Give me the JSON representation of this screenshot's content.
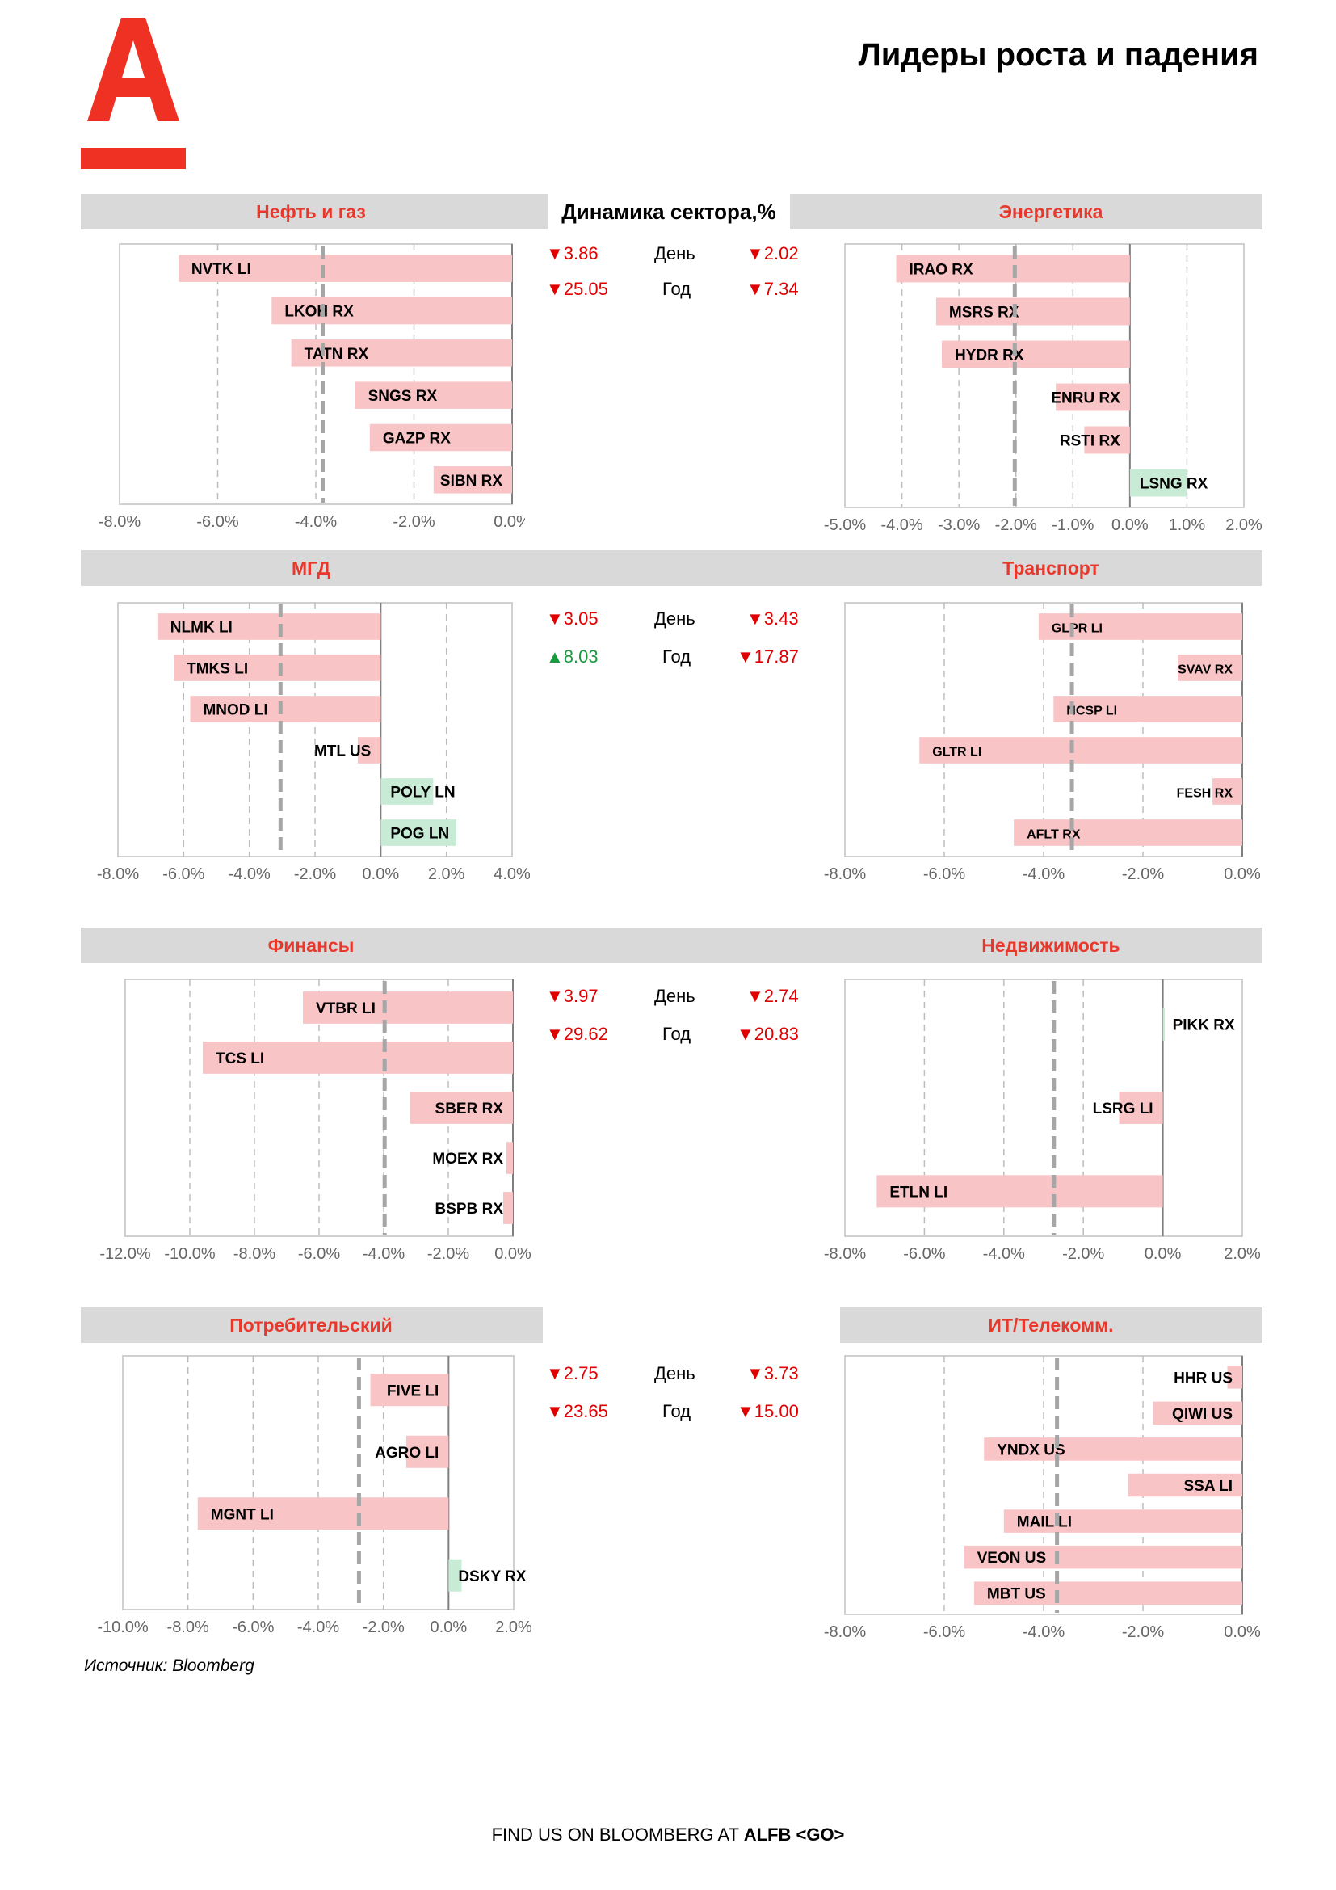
{
  "header": {
    "title": "Лидеры роста и падения",
    "brand_color": "#ef3124"
  },
  "mid_header": "Динамика сектора,%",
  "labels": {
    "day": "День",
    "year": "Год"
  },
  "source": "Источник: Bloomberg",
  "footer": {
    "prefix": "FIND US ON BLOOMBERG AT ",
    "bold": "ALFB <GO>"
  },
  "colors": {
    "negative_bar": "#f8c4c6",
    "positive_bar": "#c7ebd5",
    "title_red": "#e8382c",
    "band_gray": "#d9d9d9",
    "down_red": "#e00000",
    "up_green": "#1a9a40"
  },
  "sections": [
    {
      "title": "Нефть и газ",
      "stats": {
        "day_left": {
          "dir": "down",
          "text": "▼3.86"
        },
        "day_right": {
          "dir": "down",
          "text": "▼2.02"
        },
        "year_left": {
          "dir": "down",
          "text": "▼25.05"
        },
        "year_right": {
          "dir": "down",
          "text": "▼7.34"
        }
      }
    },
    {
      "title": "МГД",
      "stats": {
        "day_left": {
          "dir": "down",
          "text": "▼3.05"
        },
        "day_right": {
          "dir": "down",
          "text": "▼3.43"
        },
        "year_left": {
          "dir": "up",
          "text": "▲8.03"
        },
        "year_right": {
          "dir": "down",
          "text": "▼17.87"
        }
      }
    },
    {
      "title": "Финансы",
      "stats": {
        "day_left": {
          "dir": "down",
          "text": "▼3.97"
        },
        "day_right": {
          "dir": "down",
          "text": "▼2.74"
        },
        "year_left": {
          "dir": "down",
          "text": "▼29.62"
        },
        "year_right": {
          "dir": "down",
          "text": "▼20.83"
        }
      }
    },
    {
      "title": "Потребительский",
      "stats": {
        "day_left": {
          "dir": "down",
          "text": "▼2.75"
        },
        "day_right": {
          "dir": "down",
          "text": "▼3.73"
        },
        "year_left": {
          "dir": "down",
          "text": "▼23.65"
        },
        "year_right": {
          "dir": "down",
          "text": "▼15.00"
        }
      }
    }
  ],
  "right_titles": [
    "Энергетика",
    "Транспорт",
    "Недвижимость",
    "ИТ/Телекомм."
  ],
  "chart_data": [
    {
      "type": "bar",
      "title": "Нефть и газ",
      "orientation": "horizontal",
      "categories": [
        "NVTK LI",
        "LKOH RX",
        "TATN RX",
        "SNGS RX",
        "GAZP RX",
        "SIBN RX"
      ],
      "values": [
        -6.8,
        -4.9,
        -4.5,
        -3.2,
        -2.9,
        -1.6
      ],
      "xlim": [
        -8,
        0
      ],
      "ticks": [
        -8,
        -6,
        -4,
        -2,
        0
      ],
      "tick_labels": [
        "-8.0%",
        "-6.0%",
        "-4.0%",
        "-2.0%",
        "0.0%"
      ],
      "sector_average": -3.86,
      "label_size": 19
    },
    {
      "type": "bar",
      "title": "Энергетика",
      "orientation": "horizontal",
      "categories": [
        "IRAO RX",
        "MSRS RX",
        "HYDR RX",
        "ENRU RX",
        "RSTI RX",
        "LSNG RX"
      ],
      "values": [
        -4.1,
        -3.4,
        -3.3,
        -1.3,
        -0.8,
        1.0
      ],
      "xlim": [
        -5,
        2
      ],
      "ticks": [
        -5,
        -4,
        -3,
        -2,
        -1,
        0,
        1,
        2
      ],
      "tick_labels": [
        "-5.0%",
        "-4.0%",
        "-3.0%",
        "-2.0%",
        "-1.0%",
        "0.0%",
        "1.0%",
        "2.0%"
      ],
      "sector_average": -2.02,
      "label_size": 19
    },
    {
      "type": "bar",
      "title": "МГД",
      "orientation": "horizontal",
      "categories": [
        "NLMK LI",
        "TMKS LI",
        "MNOD LI",
        "MTL US",
        "POLY LN",
        "POG LN"
      ],
      "values": [
        -6.8,
        -6.3,
        -5.8,
        -0.7,
        1.6,
        2.3
      ],
      "xlim": [
        -8,
        4
      ],
      "ticks": [
        -8,
        -6,
        -4,
        -2,
        0,
        2,
        4
      ],
      "tick_labels": [
        "-8.0%",
        "-6.0%",
        "-4.0%",
        "-2.0%",
        "0.0%",
        "2.0%",
        "4.0%"
      ],
      "sector_average": -3.05,
      "label_size": 19
    },
    {
      "type": "bar",
      "title": "Транспорт",
      "orientation": "horizontal",
      "categories": [
        "GLPR LI",
        "SVAV RX",
        "NCSP LI",
        "GLTR LI",
        "FESH RX",
        "AFLT RX"
      ],
      "values": [
        -4.1,
        -1.3,
        -3.8,
        -6.5,
        -0.6,
        -4.6
      ],
      "xlim": [
        -8,
        0
      ],
      "ticks": [
        -8,
        -6,
        -4,
        -2,
        0
      ],
      "tick_labels": [
        "-8.0%",
        "-6.0%",
        "-4.0%",
        "-2.0%",
        "0.0%"
      ],
      "sector_average": -3.43,
      "label_size": 16
    },
    {
      "type": "bar",
      "title": "Финансы",
      "orientation": "horizontal",
      "categories": [
        "VTBR LI",
        "TCS LI",
        "SBER RX",
        "MOEX RX",
        "BSPB RX"
      ],
      "values": [
        -6.5,
        -9.6,
        -3.2,
        -0.2,
        -0.3
      ],
      "xlim": [
        -12,
        0
      ],
      "ticks": [
        -12,
        -10,
        -8,
        -6,
        -4,
        -2,
        0
      ],
      "tick_labels": [
        "-12.0%",
        "-10.0%",
        "-8.0%",
        "-6.0%",
        "-4.0%",
        "-2.0%",
        "0.0%"
      ],
      "sector_average": -3.97,
      "label_size": 19
    },
    {
      "type": "bar",
      "title": "Недвижимость",
      "orientation": "horizontal",
      "categories": [
        "PIKK RX",
        "LSRG LI",
        "ETLN LI"
      ],
      "values": [
        0.05,
        -1.1,
        -7.2
      ],
      "xlim": [
        -8,
        2
      ],
      "ticks": [
        -8,
        -6,
        -4,
        -2,
        0,
        2
      ],
      "tick_labels": [
        "-8.0%",
        "-6.0%",
        "-4.0%",
        "-2.0%",
        "0.0%",
        "2.0%"
      ],
      "sector_average": -2.74,
      "label_size": 19
    },
    {
      "type": "bar",
      "title": "Потребительский",
      "orientation": "horizontal",
      "categories": [
        "FIVE LI",
        "AGRO LI",
        "MGNT LI",
        "DSKY RX"
      ],
      "values": [
        -2.4,
        -1.3,
        -7.7,
        0.4
      ],
      "xlim": [
        -10,
        2
      ],
      "ticks": [
        -10,
        -8,
        -6,
        -4,
        -2,
        0,
        2
      ],
      "tick_labels": [
        "-10.0%",
        "-8.0%",
        "-6.0%",
        "-4.0%",
        "-2.0%",
        "0.0%",
        "2.0%"
      ],
      "sector_average": -2.75,
      "label_size": 19
    },
    {
      "type": "bar",
      "title": "ИТ/Телекомм.",
      "orientation": "horizontal",
      "categories": [
        "HHR US",
        "QIWI US",
        "YNDX US",
        "SSA LI",
        "MAIL LI",
        "VEON US",
        "MBT US"
      ],
      "values": [
        -0.3,
        -1.8,
        -5.2,
        -2.3,
        -4.8,
        -5.6,
        -5.4
      ],
      "xlim": [
        -8,
        0
      ],
      "ticks": [
        -8,
        -6,
        -4,
        -2,
        0
      ],
      "tick_labels": [
        "-8.0%",
        "-6.0%",
        "-4.0%",
        "-2.0%",
        "0.0%"
      ],
      "sector_average": -3.73,
      "label_size": 19
    }
  ]
}
